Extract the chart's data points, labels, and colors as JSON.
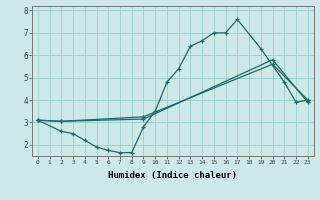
{
  "xlabel": "Humidex (Indice chaleur)",
  "bg_color": "#cce8e8",
  "line_color": "#1a6b6b",
  "grid_color": "#99cccc",
  "xlim": [
    -0.5,
    23.5
  ],
  "ylim": [
    1.5,
    8.2
  ],
  "yticks": [
    2,
    3,
    4,
    5,
    6,
    7,
    8
  ],
  "xticks": [
    0,
    1,
    2,
    3,
    4,
    5,
    6,
    7,
    8,
    9,
    10,
    11,
    12,
    13,
    14,
    15,
    16,
    17,
    18,
    19,
    20,
    21,
    22,
    23
  ],
  "line1_x": [
    0,
    2,
    3,
    4,
    5,
    6,
    7,
    8,
    9,
    10,
    11,
    12,
    13,
    14,
    15,
    16,
    17,
    19,
    21,
    22,
    23
  ],
  "line1_y": [
    3.1,
    2.6,
    2.5,
    2.2,
    1.9,
    1.75,
    1.65,
    1.65,
    2.8,
    3.5,
    4.8,
    5.4,
    6.4,
    6.65,
    7.0,
    7.0,
    7.6,
    6.3,
    4.8,
    3.9,
    4.0
  ],
  "line2_x": [
    0,
    2,
    9,
    20,
    23
  ],
  "line2_y": [
    3.1,
    3.05,
    3.25,
    5.6,
    4.0
  ],
  "line3_x": [
    0,
    2,
    9,
    20,
    23
  ],
  "line3_y": [
    3.1,
    3.05,
    3.15,
    5.8,
    3.9
  ]
}
